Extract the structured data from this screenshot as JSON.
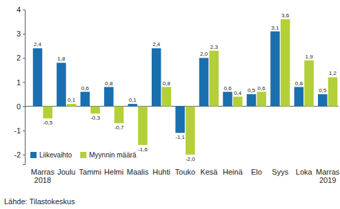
{
  "chart_data": {
    "type": "bar",
    "categories": [
      "Marras 2018",
      "Joulu",
      "Tammi",
      "Helmi",
      "Maalis",
      "Huhti",
      "Touko",
      "Kesä",
      "Heinä",
      "Elo",
      "Syys",
      "Loka",
      "Marras 2019"
    ],
    "series": [
      {
        "name": "Liikevaihto",
        "color": "#1a6faf",
        "values": [
          2.4,
          1.8,
          0.6,
          0.8,
          0.1,
          2.4,
          -1.1,
          2.0,
          0.6,
          0.5,
          3.1,
          0.8,
          0.5
        ],
        "value_labels": [
          "2,4",
          "1,8",
          "0,6",
          "0,8",
          "0,1",
          "2,4",
          "-1,1",
          "2,0",
          "0,6",
          "0,5",
          "3,1",
          "0,8",
          "0,5"
        ]
      },
      {
        "name": "Myynnin määrä",
        "color": "#b3cf3a",
        "values": [
          -0.5,
          0.1,
          -0.3,
          -0.7,
          -1.6,
          0.8,
          -2.0,
          2.3,
          0.4,
          0.6,
          3.6,
          1.9,
          1.2
        ],
        "value_labels": [
          "-0,5",
          "0,1",
          "-0,3",
          "-0,7",
          "-1,6",
          "0,8",
          "-2,0",
          "2,3",
          "0,4",
          "0,6",
          "3,6",
          "1,9",
          "1,2"
        ]
      }
    ],
    "ylim": [
      -2.4,
      4
    ],
    "yticks": [
      -2,
      -1,
      0,
      1,
      2,
      3,
      4
    ],
    "grid": false,
    "legend": "lower left",
    "data_labels": true,
    "source": "Lähde: Tilastokeskus"
  }
}
